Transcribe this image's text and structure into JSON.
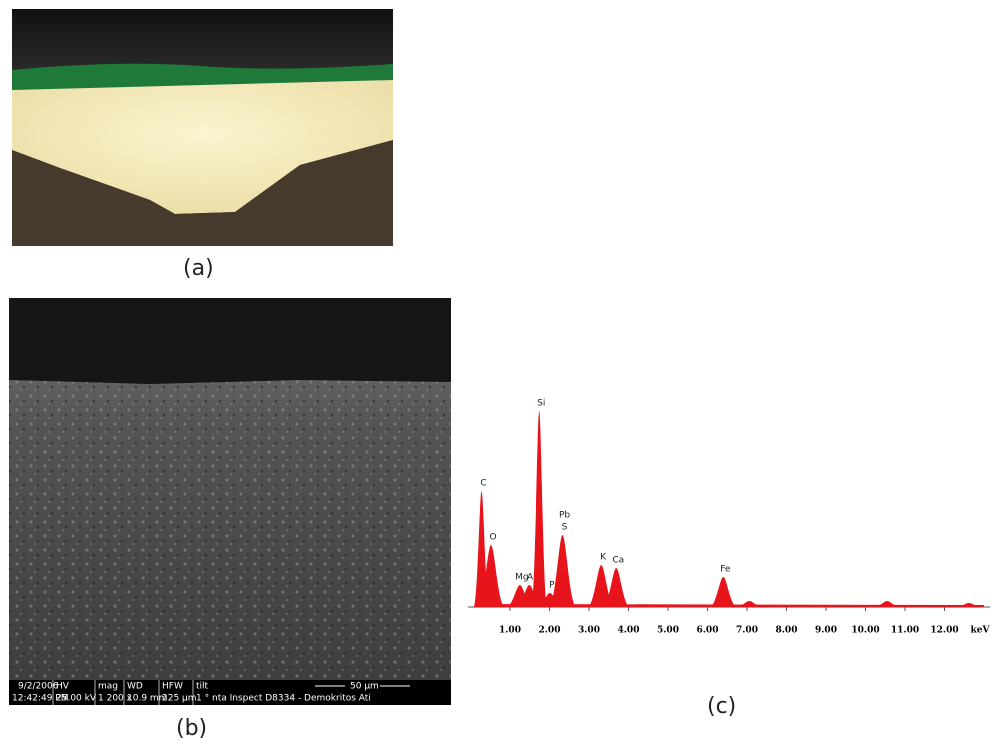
{
  "panels": {
    "a": {
      "label": "(a)"
    },
    "b": {
      "label": "(b)",
      "scale_bar": "50 µm",
      "info_bar": [
        [
          "9/2/2006",
          "12:42:49 PM"
        ],
        [
          "HV",
          "25.00 kV"
        ],
        [
          "mag",
          "1 200 x"
        ],
        [
          "WD",
          "10.9 mm"
        ],
        [
          "HFW",
          "225 µm"
        ],
        [
          "tilt",
          "1 °"
        ]
      ],
      "instrument": "nta Inspect D8334 - Demokritos Ati"
    },
    "c": {
      "label": "(c)"
    }
  },
  "chart_data": {
    "type": "spectrum",
    "x_unit": "keV",
    "xlim": [
      0,
      13
    ],
    "ylim": [
      0,
      100
    ],
    "xticks": [
      {
        "value": 1,
        "label": "1.00"
      },
      {
        "value": 2,
        "label": "2.00"
      },
      {
        "value": 3,
        "label": "3.00"
      },
      {
        "value": 4,
        "label": "4.00"
      },
      {
        "value": 5,
        "label": "5.00"
      },
      {
        "value": 6,
        "label": "6.00"
      },
      {
        "value": 7,
        "label": "7.00"
      },
      {
        "value": 8,
        "label": "8.00"
      },
      {
        "value": 9,
        "label": "9.00"
      },
      {
        "value": 10,
        "label": "10.00"
      },
      {
        "value": 11,
        "label": "11.00"
      },
      {
        "value": 12,
        "label": "12.00"
      }
    ],
    "color": "#e8141c",
    "peaks": [
      {
        "labels": [
          "C"
        ],
        "x": 0.28,
        "height": 58
      },
      {
        "labels": [
          "O"
        ],
        "x": 0.52,
        "height": 31
      },
      {
        "labels": [
          "Mg"
        ],
        "x": 1.25,
        "height": 11
      },
      {
        "labels": [
          "Al"
        ],
        "x": 1.49,
        "height": 11
      },
      {
        "labels": [
          "Si"
        ],
        "x": 1.74,
        "height": 98
      },
      {
        "labels": [
          "P"
        ],
        "x": 2.01,
        "height": 7
      },
      {
        "labels": [
          "Pb",
          "S"
        ],
        "x": 2.33,
        "height": 36
      },
      {
        "labels": [
          "K"
        ],
        "x": 3.31,
        "height": 21
      },
      {
        "labels": [
          "Ca"
        ],
        "x": 3.69,
        "height": 19.5
      },
      {
        "labels": [
          "Fe"
        ],
        "x": 6.4,
        "height": 15
      },
      {
        "x": 7.06,
        "height": 3
      },
      {
        "x": 10.55,
        "height": 3
      },
      {
        "x": 12.62,
        "height": 2
      }
    ]
  }
}
